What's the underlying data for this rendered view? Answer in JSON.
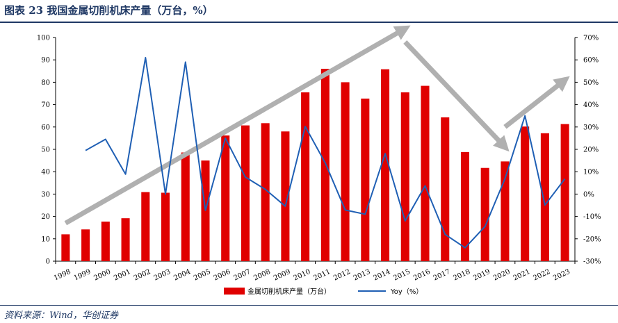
{
  "header": {
    "title": "图表 23  我国金属切削机床产量（万台，%）"
  },
  "footer": {
    "source": "资料来源：Wind，华创证券"
  },
  "chart_data": {
    "type": "bar+line",
    "categories": [
      "1998",
      "1999",
      "2000",
      "2001",
      "2002",
      "2003",
      "2004",
      "2005",
      "2006",
      "2007",
      "2008",
      "2009",
      "2010",
      "2011",
      "2012",
      "2013",
      "2014",
      "2015",
      "2016",
      "2017",
      "2018",
      "2019",
      "2020",
      "2021",
      "2022",
      "2023"
    ],
    "series": [
      {
        "name": "金属切削机床产量（万台）",
        "kind": "bar",
        "axis": "left",
        "color": "#e00000",
        "values": [
          12,
          14.2,
          17.7,
          19.2,
          30.9,
          30.6,
          48.6,
          45,
          56.2,
          60.7,
          61.7,
          58,
          75.5,
          86,
          80,
          72.7,
          85.8,
          75.5,
          78.4,
          64.3,
          48.8,
          41.7,
          44.6,
          60.2,
          57.2,
          61.3
        ]
      },
      {
        "name": "Yoy（%）",
        "kind": "line",
        "axis": "right",
        "color": "#1f5fb4",
        "values": [
          null,
          19.5,
          24.5,
          8.9,
          61,
          0,
          59,
          -7.3,
          25,
          7.6,
          2.1,
          -5.4,
          30.2,
          13.9,
          -7.1,
          -9,
          18.1,
          -12,
          3.7,
          -18,
          -24,
          -14.5,
          6.9,
          35,
          -4.9,
          6.8
        ]
      }
    ],
    "y_left": {
      "min": 0,
      "max": 100,
      "step": 10,
      "ticks": [
        "0",
        "10",
        "20",
        "30",
        "40",
        "50",
        "60",
        "70",
        "80",
        "90",
        "100"
      ]
    },
    "y_right": {
      "min": -30,
      "max": 70,
      "step": 10,
      "ticks": [
        "-30%",
        "-20%",
        "-10%",
        "0%",
        "10%",
        "20%",
        "30%",
        "40%",
        "50%",
        "60%",
        "70%"
      ]
    },
    "grid": false,
    "legend": {
      "position": "bottom"
    },
    "annotations": [
      {
        "kind": "trend-arrow",
        "color": "#b0b0b0",
        "from": {
          "x": "1998",
          "y": 17
        },
        "to": {
          "x": "2015",
          "y": 104
        }
      },
      {
        "kind": "trend-arrow",
        "color": "#b0b0b0",
        "from": {
          "x": "2015",
          "y": 98
        },
        "to": {
          "x": "2020",
          "y": 51
        }
      },
      {
        "kind": "trend-arrow",
        "color": "#b0b0b0",
        "from": {
          "x": "2020",
          "y": 60
        },
        "to": {
          "x": "2023",
          "y": 81
        }
      }
    ]
  }
}
